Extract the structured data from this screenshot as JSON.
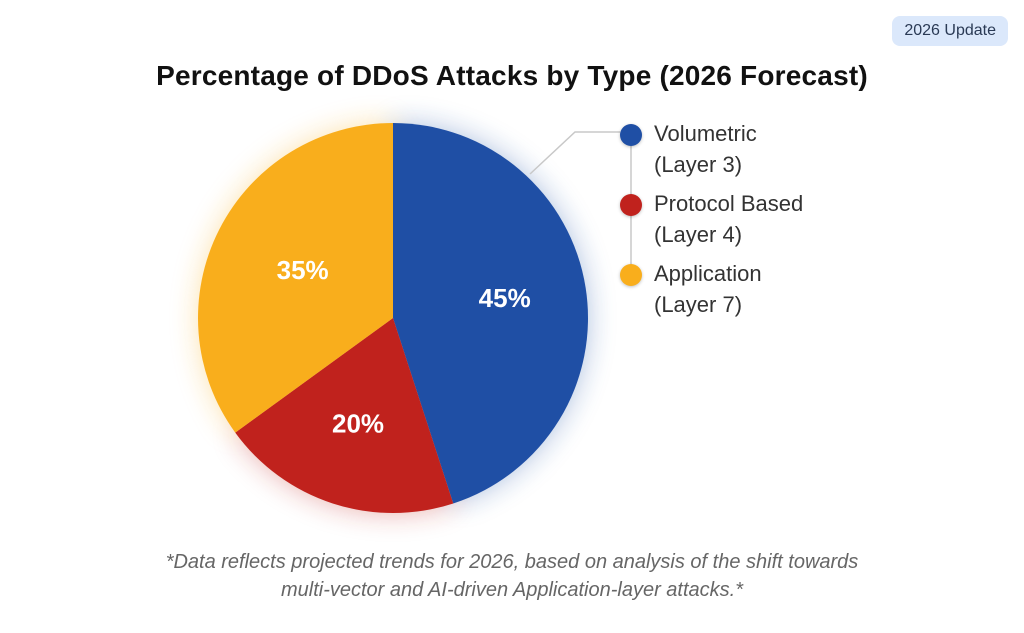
{
  "badge": "2026 Update",
  "footnote": "*Data reflects projected trends for 2026, based on analysis of the shift towards\nmulti-vector and AI-driven Application-layer attacks.*",
  "chart_data": {
    "type": "pie",
    "title": "Percentage of DDoS Attacks by Type (2026 Forecast)",
    "slices": [
      {
        "label": "Volumetric\n(Layer 3)",
        "value": 45,
        "display": "45%",
        "color": "#1f4fa5"
      },
      {
        "label": "Protocol Based\n(Layer 4)",
        "value": 20,
        "display": "20%",
        "color": "#c0221d"
      },
      {
        "label": "Application\n(Layer 7)",
        "value": 35,
        "display": "35%",
        "color": "#f9ae1c"
      }
    ],
    "legend_position": "right"
  }
}
